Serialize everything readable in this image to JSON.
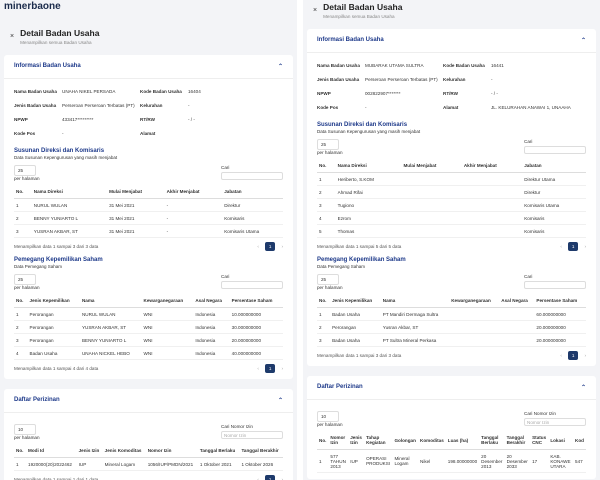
{
  "panels": [
    {
      "logo": "minerbaone",
      "title": "Detail Badan Usaha",
      "subtitle": "Menampilkan semua Badan Usaha",
      "info": {
        "title": "Informasi Badan Usaha",
        "fields": [
          {
            "label": "Nama Badan Usaha",
            "value": "UNAHA NIKEL PERSADA"
          },
          {
            "label": "Kode Badan Usaha",
            "value": "16404"
          },
          {
            "label": "Jenis Badan Usaha",
            "value": "Perseroan Perseroan Terbatas (PT)"
          },
          {
            "label": "Kelurahan",
            "value": "-"
          },
          {
            "label": "NPWP",
            "value": "433417*********"
          },
          {
            "label": "RT/RW",
            "value": "- / -"
          },
          {
            "label": "Kode Pos",
            "value": "-"
          },
          {
            "label": "Alamat",
            "value": null
          }
        ]
      },
      "directors": {
        "title": "Susunan Direksi dan Komisaris",
        "subtitle": "Data Susunan Kepengurusan yang masih menjabat",
        "per_page": "25",
        "per_page_label": "per halaman",
        "search_label": "Cari",
        "headers": [
          "No.",
          "Nama Direksi",
          "Mulai Menjabat",
          "Akhir Menjabat",
          "Jabatan"
        ],
        "rows": [
          [
            "1",
            "NURUL WULAN",
            "31 Mei 2021",
            "-",
            "Direktur"
          ],
          [
            "2",
            "BENNY YUNIARTO L",
            "31 Mei 2021",
            "-",
            "Komisaris"
          ],
          [
            "3",
            "YUSRAN AKBAR, ST",
            "31 Mei 2021",
            "-",
            "Komisaris Utama"
          ]
        ],
        "footer": "Menampilkan data 1 sampai 3 dari 3 data",
        "page": "1"
      },
      "shareholders": {
        "title": "Pemegang Kepemilikan Saham",
        "subtitle": "Data Pemegang Saham",
        "per_page": "25",
        "per_page_label": "per halaman",
        "search_label": "Cari",
        "headers": [
          "No.",
          "Jenis Kepemilikan",
          "Nama",
          "Kewarganegaraan",
          "Asal Negara",
          "Persentase Saham"
        ],
        "rows": [
          [
            "1",
            "Perorangan",
            "NURUL WULAN",
            "WNI",
            "Indonesia",
            "10.000000000"
          ],
          [
            "2",
            "Perorangan",
            "YUSRAN AKBAR, ST",
            "WNI",
            "Indonesia",
            "30.000000000"
          ],
          [
            "3",
            "Perorangan",
            "BENNY YUNIARTO L",
            "WNI",
            "Indonesia",
            "20.000000000"
          ],
          [
            "4",
            "Badan Usaha",
            "UNAHA NICKEL HEBO",
            "WNI",
            "Indonesia",
            "40.000000000"
          ]
        ],
        "footer": "Menampilkan data 1 sampai 4 dari 4 data",
        "page": "1"
      },
      "permits": {
        "title": "Daftar Perizinan",
        "per_page": "10",
        "per_page_label": "per halaman",
        "search_label": "Cari Nomor Izin",
        "search_placeholder": "Nomor Izin",
        "headers": [
          "No.",
          "Modi Id",
          "Jenis Izin",
          "Jenis Komoditas",
          "Nomor Izin",
          "Tanggal Berlaku",
          "Tanggal Berakhir"
        ],
        "rows": [
          [
            "1",
            "1920000(20)2022462",
            "IUP",
            "Mineral Logam",
            "1056/IUP/PMDN/2021",
            "1 Oktober 2021",
            "1 Oktober 2026"
          ]
        ],
        "footer": "Menampilkan data 1 sampai 1 dari 1 data",
        "page": "1"
      }
    },
    {
      "title": "Detail Badan Usaha",
      "subtitle": "Menampilkan semua Badan Usaha",
      "info": {
        "title": "Informasi Badan Usaha",
        "fields": [
          {
            "label": "Nama Badan Usaha",
            "value": "MUBARAK UTAMA SULTRA"
          },
          {
            "label": "Kode Badan Usaha",
            "value": "16441"
          },
          {
            "label": "Jenis Badan Usaha",
            "value": "Perseroan Perseroan Terbatas (PT)"
          },
          {
            "label": "Kelurahan",
            "value": "-"
          },
          {
            "label": "NPWP",
            "value": "002822907*******"
          },
          {
            "label": "RT/RW",
            "value": "- / -"
          },
          {
            "label": "Kode Pos",
            "value": "-"
          },
          {
            "label": "Alamat",
            "value": "JL. KELURAHAN ANAWAI 1, UNAAHA"
          }
        ]
      },
      "directors": {
        "title": "Susunan Direksi dan Komisaris",
        "subtitle": "Data Susunan Kepengurusan yang masih menjabat",
        "per_page": "25",
        "per_page_label": "per halaman",
        "search_label": "Cari",
        "headers": [
          "No.",
          "Nama Direksi",
          "Mulai Menjabat",
          "Akhir Menjabat",
          "Jabatan"
        ],
        "rows": [
          [
            "1",
            "Heriberto, S.KOM",
            null,
            null,
            "Direktur Utama"
          ],
          [
            "2",
            "Ahmad Rifai",
            null,
            null,
            "Direktur"
          ],
          [
            "3",
            "Tugiono",
            null,
            null,
            "Komisaris Utama"
          ],
          [
            "4",
            "Ezrom",
            null,
            null,
            "Komisaris"
          ],
          [
            "5",
            "Thomas",
            null,
            null,
            "Komisaris"
          ]
        ],
        "footer": "Menampilkan data 1 sampai 5 dari 5 data",
        "page": "1"
      },
      "shareholders": {
        "title": "Pemegang Kepemilikan Saham",
        "subtitle": "Data Pemegang Saham",
        "per_page": "25",
        "per_page_label": "per halaman",
        "search_label": "Cari",
        "headers": [
          "No.",
          "Jenis Kepemilikan",
          "Nama",
          "Kewarganegaraan",
          "Asal Negara",
          "Persentase Saham"
        ],
        "rows": [
          [
            "1",
            "Badan Usaha",
            "PT Mandiri Dermaga Sultra",
            null,
            null,
            "60.000000000"
          ],
          [
            "2",
            "Perorangan",
            "Yusran Akbar, ST",
            null,
            null,
            "20.000000000"
          ],
          [
            "3",
            "Badan Usaha",
            "PT Sultra Mineral Perkasa",
            null,
            null,
            "20.000000000"
          ]
        ],
        "footer": "Menampilkan data 1 sampai 3 dari 3 data",
        "page": "1"
      },
      "permits": {
        "title": "Daftar Perizinan",
        "per_page": "10",
        "per_page_label": "per halaman",
        "search_label": "Cari Nomor Izin",
        "search_placeholder": "Nomor Izin",
        "headers": [
          "No.",
          "Nomor Izin",
          "Jenis Izin",
          "Tahap Kegiatan",
          "Golongan",
          "Komoditas",
          "Luas (ha)",
          "Tanggal Berlaku",
          "Tanggal Berakhir",
          "Status CNC",
          "Lokasi",
          "Kod"
        ],
        "rows": [
          [
            "1",
            "577 TAHUN 2013",
            "IUP",
            "OPERASI PRODUKSI",
            "Mineral Logam",
            "Nikel",
            "198.00000000",
            "20 Desember 2013",
            "20 Desember 2033",
            "17",
            "KAB. KONAWE UTARA",
            "547"
          ]
        ],
        "footer": null,
        "page": null
      }
    }
  ]
}
